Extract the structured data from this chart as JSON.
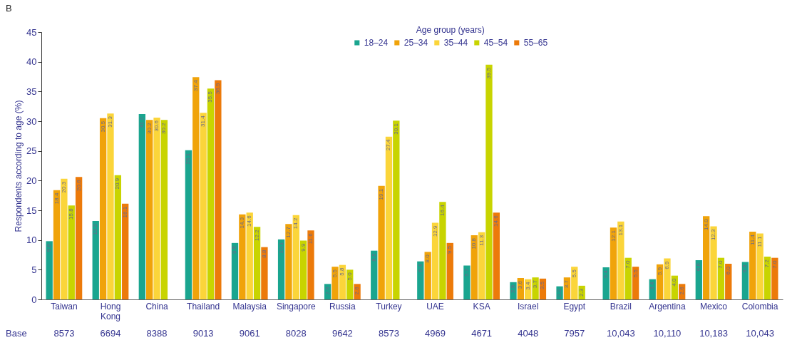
{
  "chart_data": {
    "type": "bar",
    "title": "B",
    "ylabel": "Respondents according to age (%)",
    "legend_title": "Age group (years)",
    "legend": "top",
    "ylim": [
      0,
      45
    ],
    "yticks": [
      0,
      5,
      10,
      15,
      20,
      25,
      30,
      35,
      40,
      45
    ],
    "categories": [
      "Taiwan",
      "Hong Kong",
      "China",
      "Thailand",
      "Malaysia",
      "Singapore",
      "Russia",
      "Turkey",
      "UAE",
      "KSA",
      "Israel",
      "Egypt",
      "Brazil",
      "Argentina",
      "Mexico",
      "Colombia"
    ],
    "series": [
      {
        "name": "18–24",
        "color": "#1aa58f",
        "values": [
          9.8,
          13.2,
          31.2,
          25.1,
          9.5,
          10.1,
          2.6,
          8.2,
          6.4,
          5.7,
          2.9,
          2.2,
          5.4,
          3.4,
          6.6,
          6.3
        ],
        "value_labels": [
          "9.8",
          "13.2",
          "31.2",
          "25.1",
          "9.5",
          "10.1",
          "2.6",
          "8.2",
          "6.4",
          "5.7",
          "2.9",
          "2.2",
          "5.4",
          "3.4",
          "6.6",
          "6.3"
        ]
      },
      {
        "name": "25–34",
        "color": "#f0a30a",
        "values": [
          18.4,
          30.5,
          30.2,
          37.4,
          14.3,
          12.7,
          5.5,
          19.1,
          8.0,
          10.8,
          3.6,
          3.7,
          12.1,
          5.9,
          14.0,
          11.4
        ],
        "value_labels": [
          "18.4",
          "30.5",
          "30.2",
          "37.4",
          "14.3",
          "12.7",
          "5.5",
          "19.1",
          "8.0",
          "10.8",
          "3.6",
          "3.7",
          "12.1",
          "5.9",
          "14.0",
          "11.4"
        ]
      },
      {
        "name": "35–44",
        "color": "#fbd53a",
        "values": [
          20.3,
          31.3,
          30.6,
          31.4,
          14.6,
          14.2,
          5.8,
          27.4,
          12.9,
          11.3,
          3.4,
          5.5,
          13.1,
          6.9,
          12.3,
          11.1
        ],
        "value_labels": [
          "20.3",
          "31.3",
          "30.6",
          "31.4",
          "14.6",
          "14.2",
          "5.8",
          "27.4",
          "12.9",
          "11.3",
          "3.4",
          "5.5",
          "13.1",
          "6.9",
          "12.3",
          "11.1"
        ]
      },
      {
        "name": "45–54",
        "color": "#c8d400",
        "values": [
          15.8,
          20.9,
          30.2,
          35.5,
          12.2,
          9.9,
          5.0,
          30.1,
          16.4,
          39.5,
          3.7,
          2.3,
          7.0,
          4.0,
          7.0,
          7.2
        ],
        "value_labels": [
          "15.8",
          "20.9",
          "30.2",
          "35.5",
          "12.2",
          "9.9",
          "5.0",
          "30.1",
          "16.4",
          "39.5",
          "3.7",
          "2.3",
          "7.0",
          "4.0",
          "7.0",
          "7.2"
        ]
      },
      {
        "name": "55–65",
        "color": "#ec7a0a",
        "values": [
          20.6,
          16.1,
          null,
          36.9,
          8.8,
          11.6,
          2.6,
          null,
          9.5,
          14.6,
          3.5,
          null,
          5.5,
          2.6,
          6.0,
          7.0
        ],
        "value_labels": [
          "20.6",
          "16.1",
          null,
          "36.9",
          "8.8",
          "11.6",
          "2.6",
          null,
          "9.5",
          "14.6",
          "3.5",
          null,
          "5.5",
          "2.6",
          "6.0",
          "7.0"
        ]
      }
    ],
    "annotations": [
      "Base",
      "8573",
      "6694",
      "8388",
      "9013",
      "9061",
      "8028",
      "9642",
      "8573",
      "4969",
      "4671",
      "4048",
      "7957",
      "10,043",
      "10,110",
      "10,183",
      "10,043"
    ]
  }
}
